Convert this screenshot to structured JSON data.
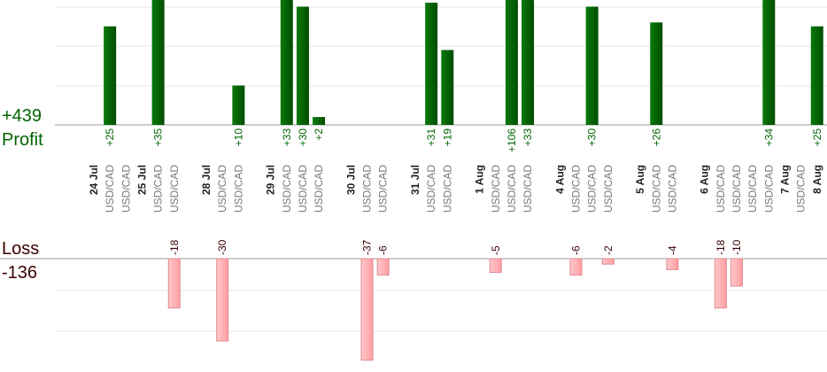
{
  "summary": {
    "profit_total": "+439",
    "profit_label": "Profit",
    "loss_label": "Loss",
    "loss_total": "-136"
  },
  "colors": {
    "profit_bar": "#006400",
    "profit_text": "#006400",
    "loss_bar": "#ffb6b8",
    "loss_bar_stroke": "#e08a90",
    "loss_text": "#3a0000",
    "date_text": "#222222",
    "pair_text": "#777777",
    "axis": "#999999",
    "grid": "#e6e6e6"
  },
  "chart_data": {
    "type": "bar",
    "series": [
      {
        "name": "Profit",
        "trades": [
          {
            "column": 1,
            "value": 25
          },
          {
            "column": 4,
            "value": 35
          },
          {
            "column": 9,
            "value": 10
          },
          {
            "column": 12,
            "value": 33
          },
          {
            "column": 13,
            "value": 30
          },
          {
            "column": 14,
            "value": 2
          },
          {
            "column": 21,
            "value": 31
          },
          {
            "column": 22,
            "value": 19
          },
          {
            "column": 26,
            "value": 106
          },
          {
            "column": 27,
            "value": 33
          },
          {
            "column": 31,
            "value": 30
          },
          {
            "column": 35,
            "value": 26
          },
          {
            "column": 42,
            "value": 34
          },
          {
            "column": 45,
            "value": 25
          }
        ]
      },
      {
        "name": "Loss",
        "trades": [
          {
            "column": 5,
            "value": -18
          },
          {
            "column": 8,
            "value": -30
          },
          {
            "column": 17,
            "value": -37
          },
          {
            "column": 18,
            "value": -6
          },
          {
            "column": 25,
            "value": -5
          },
          {
            "column": 30,
            "value": -6
          },
          {
            "column": 32,
            "value": -2
          },
          {
            "column": 36,
            "value": -4
          },
          {
            "column": 39,
            "value": -18
          },
          {
            "column": 40,
            "value": -10
          }
        ]
      }
    ],
    "columns": [
      {
        "col": 0,
        "kind": "date",
        "label": "24 Jul"
      },
      {
        "col": 1,
        "kind": "pair",
        "label": "USD/CAD"
      },
      {
        "col": 2,
        "kind": "pair",
        "label": "USD/CAD"
      },
      {
        "col": 3,
        "kind": "date",
        "label": "25 Jul"
      },
      {
        "col": 4,
        "kind": "pair",
        "label": "USD/CAD"
      },
      {
        "col": 5,
        "kind": "pair",
        "label": "USD/CAD"
      },
      {
        "col": 7,
        "kind": "date",
        "label": "28 Jul"
      },
      {
        "col": 8,
        "kind": "pair",
        "label": "USD/CAD"
      },
      {
        "col": 9,
        "kind": "pair",
        "label": "USD/CAD"
      },
      {
        "col": 11,
        "kind": "date",
        "label": "29 Jul"
      },
      {
        "col": 12,
        "kind": "pair",
        "label": "USD/CAD"
      },
      {
        "col": 13,
        "kind": "pair",
        "label": "USD/CAD"
      },
      {
        "col": 14,
        "kind": "pair",
        "label": "USD/CAD"
      },
      {
        "col": 16,
        "kind": "date",
        "label": "30 Jul"
      },
      {
        "col": 17,
        "kind": "pair",
        "label": "USD/CAD"
      },
      {
        "col": 18,
        "kind": "pair",
        "label": "USD/CAD"
      },
      {
        "col": 20,
        "kind": "date",
        "label": "31 Jul"
      },
      {
        "col": 21,
        "kind": "pair",
        "label": "USD/CAD"
      },
      {
        "col": 22,
        "kind": "pair",
        "label": "USD/CAD"
      },
      {
        "col": 24,
        "kind": "date",
        "label": "1 Aug"
      },
      {
        "col": 25,
        "kind": "pair",
        "label": "USD/CAD"
      },
      {
        "col": 26,
        "kind": "pair",
        "label": "USD/CAD"
      },
      {
        "col": 27,
        "kind": "pair",
        "label": "USD/CAD"
      },
      {
        "col": 29,
        "kind": "date",
        "label": "4 Aug"
      },
      {
        "col": 30,
        "kind": "pair",
        "label": "USD/CAD"
      },
      {
        "col": 31,
        "kind": "pair",
        "label": "USD/CAD"
      },
      {
        "col": 32,
        "kind": "pair",
        "label": "USD/CAD"
      },
      {
        "col": 34,
        "kind": "date",
        "label": "5 Aug"
      },
      {
        "col": 35,
        "kind": "pair",
        "label": "USD/CAD"
      },
      {
        "col": 36,
        "kind": "pair",
        "label": "USD/CAD"
      },
      {
        "col": 38,
        "kind": "date",
        "label": "6 Aug"
      },
      {
        "col": 39,
        "kind": "pair",
        "label": "USD/CAD"
      },
      {
        "col": 40,
        "kind": "pair",
        "label": "USD/CAD"
      },
      {
        "col": 41,
        "kind": "pair",
        "label": "USD/CAD"
      },
      {
        "col": 43,
        "kind": "date",
        "label": "7 Aug"
      },
      {
        "col": 42,
        "kind": "pair",
        "label": "USD/CAD"
      },
      {
        "col": 44,
        "kind": "pair",
        "label": "USD/CAD"
      },
      {
        "col": 45,
        "kind": "date",
        "label": "8 Aug"
      },
      {
        "col": 46,
        "kind": "pair",
        "label": "USD/CAD"
      },
      {
        "col": 47,
        "kind": "pair",
        "label": "USD/CAD"
      }
    ],
    "grid": true
  }
}
